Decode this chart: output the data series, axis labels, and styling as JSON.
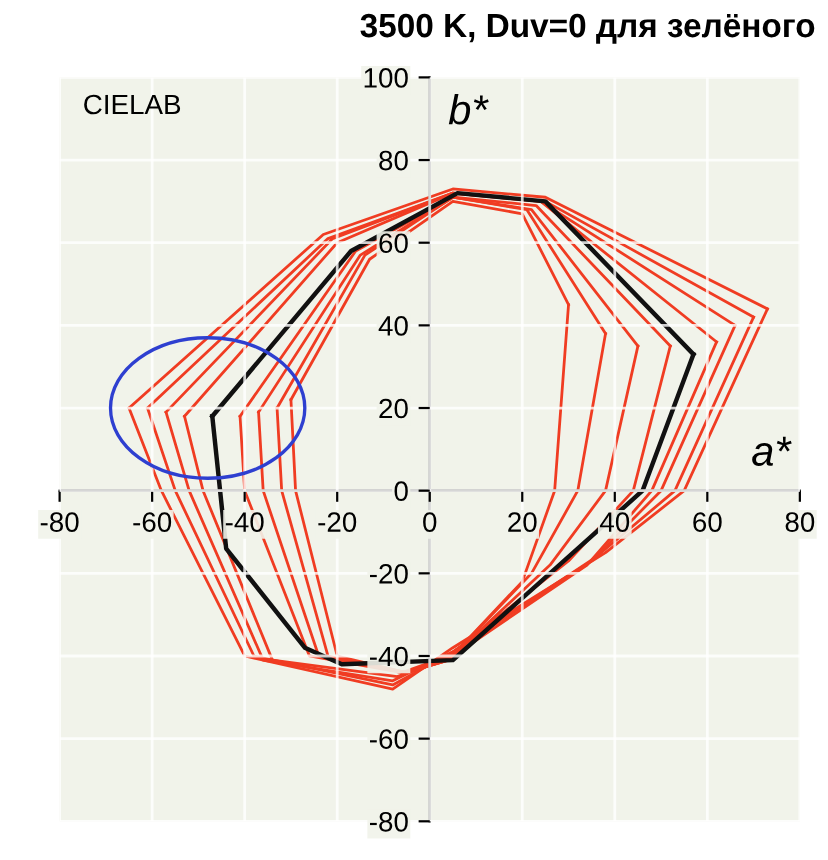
{
  "chart_data": {
    "type": "line",
    "title": "3500 K, Duv=0 для зелёного",
    "xlabel": "a*",
    "ylabel": "b*",
    "annotations": [
      "CIELAB"
    ],
    "xlim": [
      -80,
      80
    ],
    "ylim": [
      -80,
      100
    ],
    "xticks": [
      -80,
      -60,
      -40,
      -20,
      0,
      20,
      40,
      60,
      80
    ],
    "yticks": [
      -80,
      -60,
      -40,
      -20,
      0,
      20,
      40,
      60,
      80,
      100
    ],
    "grid": true,
    "marker": "none",
    "line_style": "solid",
    "series": [
      {
        "color": "#f03c22",
        "x": [
          -65,
          -23,
          5,
          25,
          73
        ],
        "values": [
          20,
          62,
          73,
          71,
          44
        ]
      },
      {
        "color": "#f03c22",
        "x": [
          -65,
          -58,
          -40,
          -8,
          5,
          38,
          55,
          73
        ],
        "values": [
          20,
          0,
          -40,
          -48,
          -38,
          -15,
          0,
          44
        ]
      },
      {
        "color": "#f03c22",
        "x": [
          -61,
          -22,
          5,
          25,
          70
        ],
        "values": [
          20,
          61,
          72,
          70,
          42
        ]
      },
      {
        "color": "#f03c22",
        "x": [
          -61,
          -55,
          -38,
          -8,
          5,
          36,
          53,
          70
        ],
        "values": [
          20,
          0,
          -40,
          -47,
          -39,
          -16,
          0,
          42
        ]
      },
      {
        "color": "#f03c22",
        "x": [
          -57,
          -21,
          5,
          24,
          66
        ],
        "values": [
          19,
          61,
          72,
          70,
          40
        ]
      },
      {
        "color": "#f03c22",
        "x": [
          -57,
          -52,
          -36,
          -8,
          5,
          35,
          50,
          66
        ],
        "values": [
          19,
          0,
          -41,
          -46,
          -39,
          -17,
          0,
          40
        ]
      },
      {
        "color": "#f03c22",
        "x": [
          -53,
          -20,
          5,
          24,
          62
        ],
        "values": [
          18,
          60,
          72,
          70,
          36
        ]
      },
      {
        "color": "#f03c22",
        "x": [
          -53,
          -49,
          -34,
          -7,
          5,
          34,
          48,
          62
        ],
        "values": [
          18,
          0,
          -41,
          -45,
          -40,
          -18,
          0,
          36
        ]
      },
      {
        "color": "#f03c22",
        "x": [
          -41,
          -16,
          5,
          23,
          52
        ],
        "values": [
          18,
          58,
          71,
          69,
          35
        ]
      },
      {
        "color": "#f03c22",
        "x": [
          -41,
          -40,
          -26,
          -6,
          4,
          30,
          44,
          52
        ],
        "values": [
          18,
          0,
          -40,
          -44,
          -40,
          -17,
          0,
          35
        ]
      },
      {
        "color": "#f03c22",
        "x": [
          -37,
          -15,
          5,
          22,
          45
        ],
        "values": [
          19,
          57,
          71,
          68,
          35
        ]
      },
      {
        "color": "#f03c22",
        "x": [
          -37,
          -36,
          -24,
          -5,
          4,
          26,
          38,
          45
        ],
        "values": [
          19,
          0,
          -40,
          -44,
          -41,
          -18,
          0,
          35
        ]
      },
      {
        "color": "#f03c22",
        "x": [
          -33,
          -14,
          5,
          21,
          38
        ],
        "values": [
          20,
          57,
          71,
          68,
          38
        ]
      },
      {
        "color": "#f03c22",
        "x": [
          -33,
          -32,
          -22,
          -5,
          4,
          22,
          32,
          38
        ],
        "values": [
          20,
          0,
          -40,
          -44,
          -41,
          -20,
          0,
          38
        ]
      },
      {
        "color": "#f03c22",
        "x": [
          -30,
          -13,
          5,
          20,
          30
        ],
        "values": [
          22,
          56,
          70,
          67,
          45
        ]
      },
      {
        "color": "#f03c22",
        "x": [
          -30,
          -29,
          -20,
          -5,
          4,
          20,
          27,
          30
        ],
        "values": [
          22,
          0,
          -40,
          -44,
          -41,
          -22,
          0,
          45
        ]
      },
      {
        "color": "#111111",
        "x": [
          -47,
          -17,
          6,
          25,
          57
        ],
        "values": [
          18,
          58,
          72,
          70,
          33
        ]
      },
      {
        "color": "#111111",
        "x": [
          -47,
          -44,
          -27,
          -19,
          5,
          33,
          46,
          57
        ],
        "values": [
          18,
          -14,
          -38,
          -42,
          -41,
          -13,
          0,
          33
        ]
      }
    ]
  }
}
